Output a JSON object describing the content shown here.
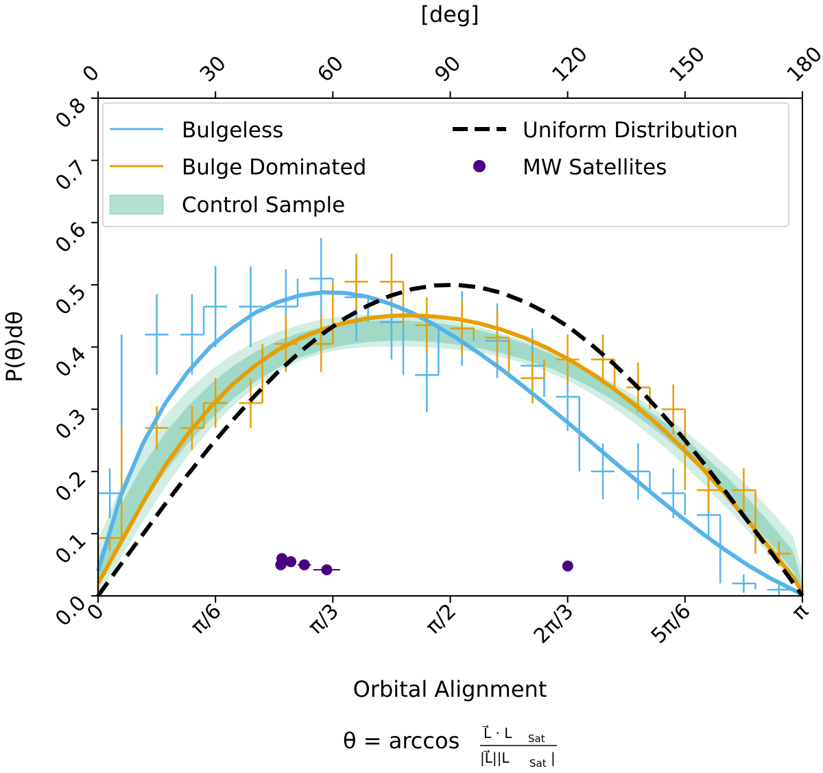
{
  "chart_data": {
    "type": "line",
    "xlabel": "Orbital Alignment",
    "ylabel": "P(θ)dθ",
    "top_xlabel": "[deg]",
    "formula": {
      "lhs": "θ = arccos",
      "numerator": "L⃗ · L",
      "numerator_sub": "Sat",
      "denominator": "|L⃗||L",
      "denominator_sub": "Sat",
      "denominator_end": "|"
    },
    "xlim": [
      0,
      3.14159
    ],
    "ylim": [
      0,
      0.8
    ],
    "x_tick_values": [
      0,
      0.5236,
      1.0472,
      1.5708,
      2.0944,
      2.618,
      3.14159
    ],
    "x_tick_labels": [
      "0",
      "π/6",
      "π/3",
      "π/2",
      "2π/3",
      "5π/6",
      "π"
    ],
    "top_tick_values": [
      0,
      30,
      60,
      90,
      120,
      150,
      180
    ],
    "top_tick_labels": [
      "0",
      "30",
      "60",
      "90",
      "120",
      "150",
      "180"
    ],
    "y_tick_values": [
      0,
      0.1,
      0.2,
      0.3,
      0.4,
      0.5,
      0.6,
      0.7,
      0.8
    ],
    "y_tick_labels": [
      "0.0",
      "0.1",
      "0.2",
      "0.3",
      "0.4",
      "0.5",
      "0.6",
      "0.7",
      "0.8"
    ],
    "legend": {
      "location": "upper",
      "entries": [
        {
          "label": "Bulgeless",
          "kind": "line",
          "color": "#56b4e9"
        },
        {
          "label": "Bulge Dominated",
          "kind": "line",
          "color": "#e69f00"
        },
        {
          "label": "Control Sample",
          "kind": "patch",
          "color": "#7fcdbb"
        },
        {
          "label": "Uniform Distribution",
          "kind": "dashed",
          "color": "#000000"
        },
        {
          "label": "MW Satellites",
          "kind": "marker",
          "color": "#4b0082"
        }
      ]
    },
    "colors": {
      "bulgeless": "#56b4e9",
      "bulge_dominated": "#e69f00",
      "control": "#66c2a5",
      "uniform": "#000000",
      "mw": "#4b0082"
    },
    "bin_width": 0.1047,
    "bulgeless_hist": {
      "bin_centers": [
        0.0524,
        0.2618,
        0.4189,
        0.5236,
        0.6807,
        0.8378,
        0.9948,
        1.1519,
        1.309,
        1.4661,
        1.6232,
        1.7802,
        1.9373,
        2.0944,
        2.2515,
        2.4086,
        2.5656,
        2.7227,
        2.8798,
        3.0369
      ],
      "values": [
        0.165,
        0.42,
        0.42,
        0.465,
        0.465,
        0.465,
        0.51,
        0.48,
        0.44,
        0.355,
        0.43,
        0.41,
        0.37,
        0.32,
        0.2,
        0.2,
        0.165,
        0.13,
        0.02,
        0.01
      ],
      "errors": [
        0.04,
        0.065,
        0.065,
        0.065,
        0.065,
        0.06,
        0.065,
        0.07,
        0.06,
        0.06,
        0.06,
        0.06,
        0.06,
        0.055,
        0.045,
        0.045,
        0.04,
        0.035,
        0.015,
        0.01
      ]
    },
    "bulge_dominated_hist": {
      "bin_centers": [
        0.0524,
        0.2618,
        0.4189,
        0.5236,
        0.6807,
        0.8378,
        0.9948,
        1.1519,
        1.309,
        1.4661,
        1.6232,
        1.7802,
        1.9373,
        2.0944,
        2.2515,
        2.4086,
        2.5656,
        2.7227,
        2.8798,
        3.0369
      ],
      "values": [
        0.093,
        0.27,
        0.27,
        0.31,
        0.31,
        0.405,
        0.405,
        0.505,
        0.505,
        0.435,
        0.43,
        0.415,
        0.35,
        0.38,
        0.38,
        0.335,
        0.3,
        0.17,
        0.17,
        0.068
      ],
      "errors": [
        0.02,
        0.035,
        0.035,
        0.04,
        0.04,
        0.045,
        0.045,
        0.045,
        0.045,
        0.045,
        0.045,
        0.045,
        0.04,
        0.04,
        0.04,
        0.04,
        0.04,
        0.035,
        0.035,
        0.02
      ]
    },
    "curves": {
      "x": [
        0,
        0.1,
        0.2,
        0.3,
        0.4,
        0.5,
        0.6,
        0.7,
        0.8,
        0.9,
        1.0,
        1.1,
        1.2,
        1.3,
        1.4,
        1.5,
        1.6,
        1.7,
        1.8,
        1.9,
        2.0,
        2.1,
        2.2,
        2.3,
        2.4,
        2.5,
        2.6,
        2.7,
        2.8,
        2.9,
        3.0,
        3.1,
        3.14159
      ],
      "bulgeless": [
        0.04,
        0.16,
        0.245,
        0.31,
        0.36,
        0.4,
        0.43,
        0.455,
        0.472,
        0.483,
        0.488,
        0.487,
        0.481,
        0.47,
        0.455,
        0.436,
        0.414,
        0.39,
        0.364,
        0.336,
        0.307,
        0.277,
        0.247,
        0.216,
        0.186,
        0.156,
        0.127,
        0.099,
        0.073,
        0.049,
        0.028,
        0.01,
        0.002
      ],
      "bulge_dominated": [
        0.02,
        0.085,
        0.15,
        0.21,
        0.26,
        0.303,
        0.34,
        0.37,
        0.395,
        0.414,
        0.428,
        0.439,
        0.446,
        0.45,
        0.451,
        0.449,
        0.445,
        0.438,
        0.428,
        0.415,
        0.399,
        0.38,
        0.358,
        0.333,
        0.305,
        0.274,
        0.24,
        0.203,
        0.163,
        0.12,
        0.075,
        0.03,
        0.005
      ],
      "uniform": [
        0,
        0.05,
        0.099,
        0.148,
        0.195,
        0.24,
        0.282,
        0.322,
        0.359,
        0.392,
        0.421,
        0.446,
        0.466,
        0.482,
        0.493,
        0.499,
        0.5,
        0.496,
        0.487,
        0.473,
        0.455,
        0.432,
        0.404,
        0.373,
        0.338,
        0.299,
        0.258,
        0.214,
        0.167,
        0.119,
        0.071,
        0.021,
        0.0
      ],
      "control_outer_low": [
        0.0,
        0.06,
        0.12,
        0.175,
        0.225,
        0.268,
        0.305,
        0.336,
        0.36,
        0.378,
        0.39,
        0.397,
        0.4,
        0.401,
        0.401,
        0.399,
        0.396,
        0.391,
        0.384,
        0.374,
        0.361,
        0.345,
        0.325,
        0.302,
        0.276,
        0.247,
        0.215,
        0.18,
        0.143,
        0.104,
        0.064,
        0.023,
        0.0
      ],
      "control_outer_high": [
        0.09,
        0.175,
        0.24,
        0.29,
        0.33,
        0.362,
        0.388,
        0.408,
        0.424,
        0.436,
        0.445,
        0.45,
        0.452,
        0.452,
        0.45,
        0.446,
        0.44,
        0.432,
        0.422,
        0.41,
        0.396,
        0.38,
        0.362,
        0.342,
        0.32,
        0.296,
        0.27,
        0.241,
        0.21,
        0.176,
        0.138,
        0.095,
        0.04
      ],
      "control_inner_low": [
        0.02,
        0.09,
        0.15,
        0.2,
        0.245,
        0.283,
        0.316,
        0.344,
        0.366,
        0.383,
        0.395,
        0.403,
        0.408,
        0.41,
        0.41,
        0.408,
        0.404,
        0.398,
        0.39,
        0.38,
        0.368,
        0.353,
        0.335,
        0.314,
        0.29,
        0.263,
        0.233,
        0.2,
        0.164,
        0.125,
        0.084,
        0.04,
        0.005
      ],
      "control_inner_high": [
        0.06,
        0.145,
        0.21,
        0.262,
        0.305,
        0.34,
        0.369,
        0.392,
        0.41,
        0.423,
        0.432,
        0.438,
        0.442,
        0.443,
        0.442,
        0.439,
        0.434,
        0.427,
        0.418,
        0.406,
        0.392,
        0.376,
        0.357,
        0.336,
        0.312,
        0.286,
        0.258,
        0.227,
        0.193,
        0.156,
        0.116,
        0.072,
        0.02
      ]
    },
    "mw_satellites": {
      "x": [
        0.815,
        0.825,
        0.82,
        0.86,
        0.92,
        1.02,
        2.095
      ],
      "y": [
        0.05,
        0.055,
        0.06,
        0.055,
        0.05,
        0.042,
        0.048
      ],
      "xerr": [
        0.015,
        0.02,
        0.015,
        0.02,
        0.03,
        0.06,
        0.0
      ]
    }
  }
}
